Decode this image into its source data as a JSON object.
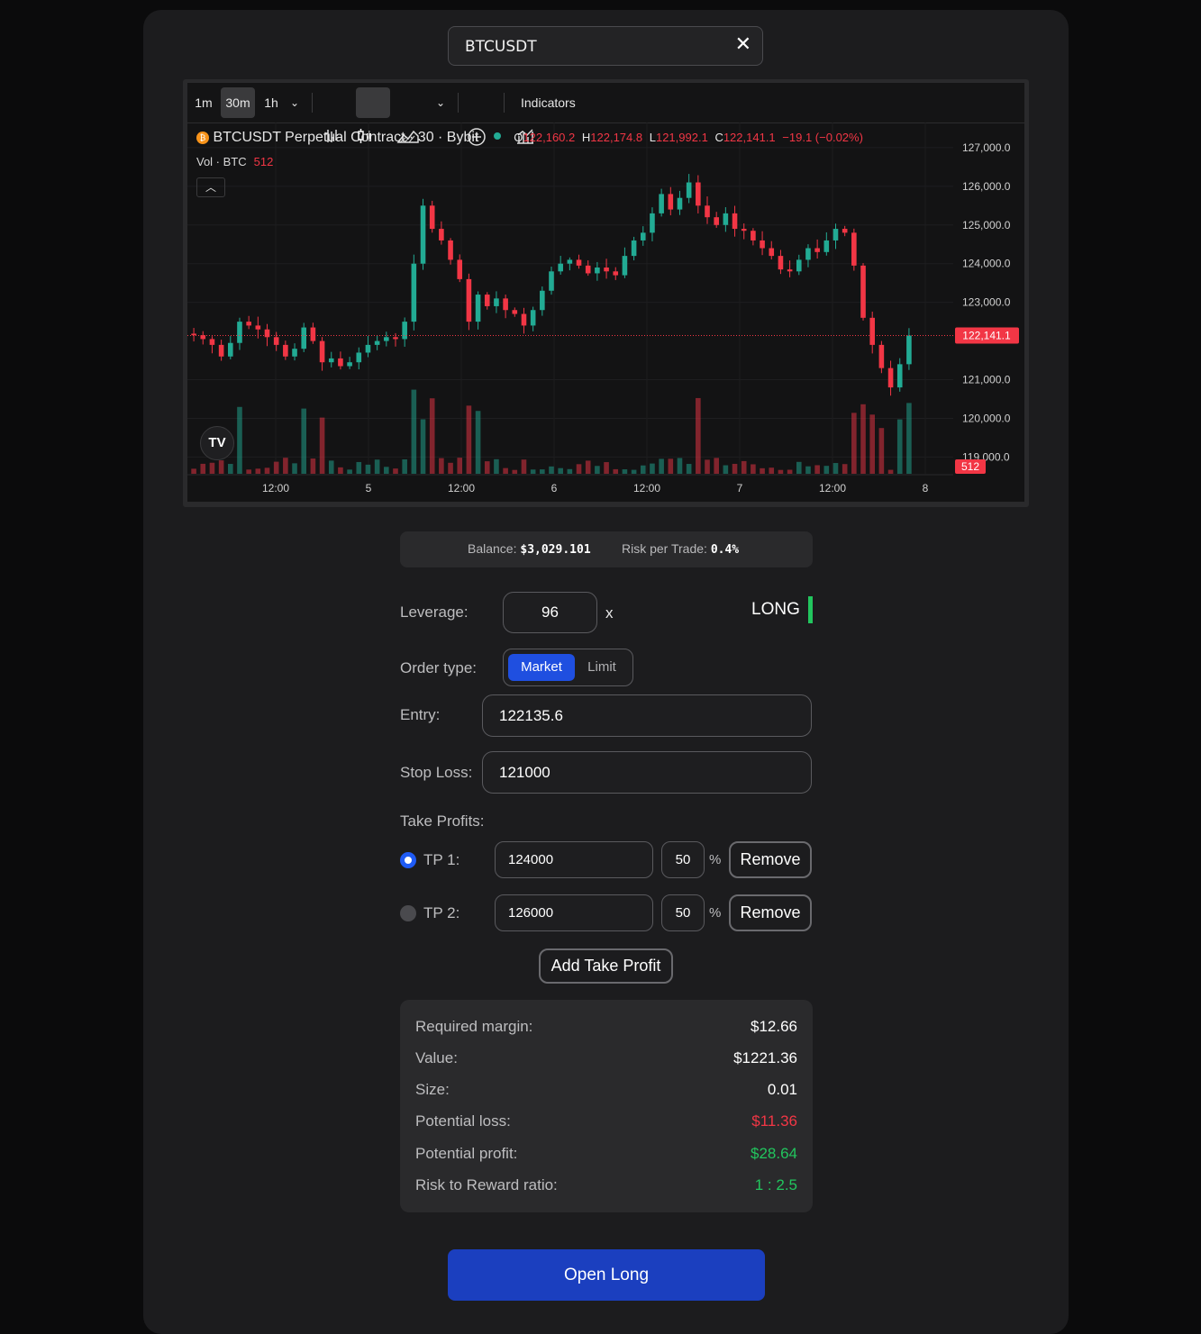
{
  "symbol": {
    "value": "BTCUSDT",
    "clear_icon": "close-icon"
  },
  "chart_toolbar": {
    "intervals": [
      "1m",
      "30m",
      "1h"
    ],
    "active_interval": "30m",
    "indicators_label": "Indicators"
  },
  "chart_legend": {
    "title": "BTCUSDT Perpetual Contract · 30 · Bybit",
    "o_label": "O",
    "o": "122,160.2",
    "h_label": "H",
    "h": "122,174.8",
    "l_label": "L",
    "l": "121,992.1",
    "c_label": "C",
    "c": "122,141.1",
    "change": "−19.1 (−0.02%)",
    "vol_label": "Vol · BTC",
    "vol": "512"
  },
  "chart_data": {
    "type": "candlestick",
    "title": "BTCUSDT Perpetual Contract · 30 · Bybit",
    "y_ticks": [
      "127,000.0",
      "126,000.0",
      "125,000.0",
      "124,000.0",
      "123,000.0",
      "121,000.0",
      "120,000.0",
      "119,000.0"
    ],
    "x_ticks": [
      "12:00",
      "5",
      "12:00",
      "6",
      "12:00",
      "7",
      "12:00",
      "8"
    ],
    "ylim": [
      118800,
      127300
    ],
    "last_price": 122141.1,
    "last_price_label": "122,141.1",
    "last_volume_label": "512",
    "colors": {
      "up": "#22ab94",
      "down": "#f23645"
    },
    "series": [
      {
        "name": "close",
        "values": [
          122150,
          122050,
          121900,
          121600,
          121950,
          122500,
          122400,
          122300,
          122100,
          121900,
          121600,
          121800,
          122350,
          122000,
          121450,
          121550,
          121350,
          121450,
          121700,
          121900,
          122000,
          122100,
          122050,
          122500,
          124000,
          125500,
          124900,
          124600,
          124100,
          123600,
          122500,
          123200,
          122900,
          123100,
          122800,
          122700,
          122400,
          122800,
          123300,
          123800,
          124000,
          124100,
          123950,
          123750,
          123900,
          123800,
          123700,
          124200,
          124600,
          124800,
          125300,
          125800,
          125400,
          125700,
          126100,
          125500,
          125200,
          125000,
          125300,
          124900,
          124850,
          124600,
          124400,
          124200,
          123850,
          123800,
          124100,
          124400,
          124300,
          124600,
          124900,
          124800,
          123950,
          122600,
          121900,
          121300,
          120800,
          121400,
          122141.1
        ]
      }
    ]
  },
  "balance": {
    "label": "Balance:",
    "value": "$3,029.101",
    "risk_label": "Risk per Trade:",
    "risk_value": "0.4%"
  },
  "form": {
    "leverage_label": "Leverage:",
    "leverage_value": "96",
    "leverage_unit": "x",
    "side": "LONG",
    "side_color": "#22c55e",
    "order_type_label": "Order type:",
    "order_types": [
      "Market",
      "Limit"
    ],
    "order_type_selected": "Market",
    "entry_label": "Entry:",
    "entry_value": "122135.6",
    "stop_loss_label": "Stop Loss:",
    "stop_loss_value": "121000",
    "take_profits_label": "Take Profits:",
    "take_profits": [
      {
        "label": "TP 1:",
        "price": "124000",
        "percent": "50",
        "unit": "%",
        "remove_label": "Remove",
        "selected": true
      },
      {
        "label": "TP 2:",
        "price": "126000",
        "percent": "50",
        "unit": "%",
        "remove_label": "Remove",
        "selected": false
      }
    ],
    "add_tp_label": "Add Take Profit"
  },
  "summary": {
    "rows": [
      {
        "label": "Required margin:",
        "value": "$12.66"
      },
      {
        "label": "Value:",
        "value": "$1221.36"
      },
      {
        "label": "Size:",
        "value": "0.01"
      },
      {
        "label": "Potential loss:",
        "value": "$11.36"
      },
      {
        "label": "Potential profit:",
        "value": "$28.64"
      },
      {
        "label": "Risk to Reward ratio:",
        "value": "1 : 2.5"
      }
    ]
  },
  "submit_label": "Open Long"
}
